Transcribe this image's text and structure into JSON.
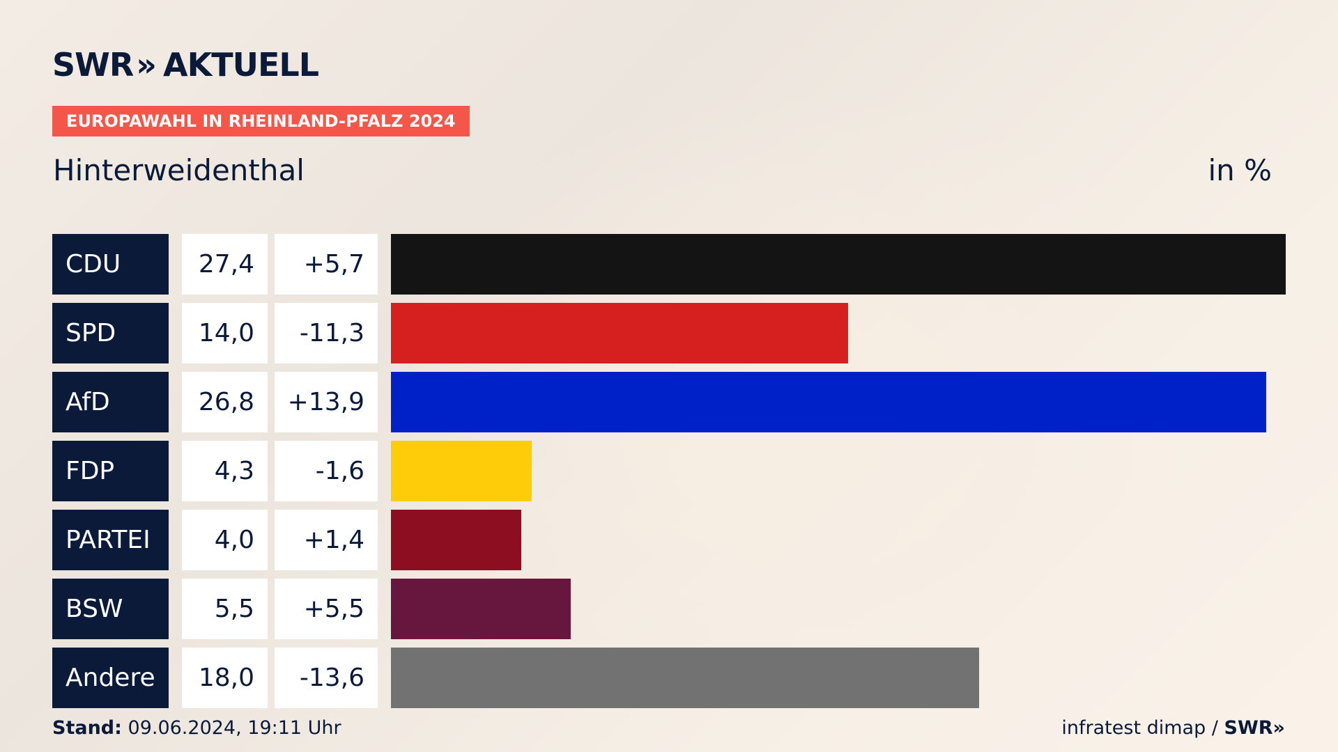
{
  "header": {
    "logo_prefix": "SWR",
    "logo_chevrons": "»",
    "logo_suffix": "AKTUELL",
    "badge": "EUROPAWAHL IN RHEINLAND-PFALZ 2024",
    "region": "Hinterweidenthal",
    "unit": "in %"
  },
  "footer": {
    "stand_label": "Stand:",
    "stand_value": "09.06.2024, 19:11 Uhr",
    "source": "infratest dimap /",
    "source_brand": "SWR»"
  },
  "colors": {
    "navy": "#0c1a3a",
    "badge": "#f4564a"
  },
  "chart_data": {
    "type": "bar",
    "orientation": "horizontal",
    "categories": [
      "CDU",
      "SPD",
      "AfD",
      "FDP",
      "PARTEI",
      "BSW",
      "Andere"
    ],
    "values": [
      27.4,
      14.0,
      26.8,
      4.3,
      4.0,
      5.5,
      18.0
    ],
    "value_labels": [
      "27,4",
      "14,0",
      "26,8",
      "4,3",
      "4,0",
      "5,5",
      "18,0"
    ],
    "diffs": [
      5.7,
      -11.3,
      13.9,
      -1.6,
      1.4,
      5.5,
      -13.6
    ],
    "diff_labels": [
      "+5,7",
      "-11,3",
      "+13,9",
      "-1,6",
      "+1,4",
      "+5,5",
      "-13,6"
    ],
    "bar_colors": [
      "#141414",
      "#d6201f",
      "#0021c7",
      "#ffcc0a",
      "#8e0e21",
      "#67163d",
      "#727272"
    ],
    "xlim": [
      0,
      27.4
    ],
    "grid": false,
    "legend": "none"
  }
}
